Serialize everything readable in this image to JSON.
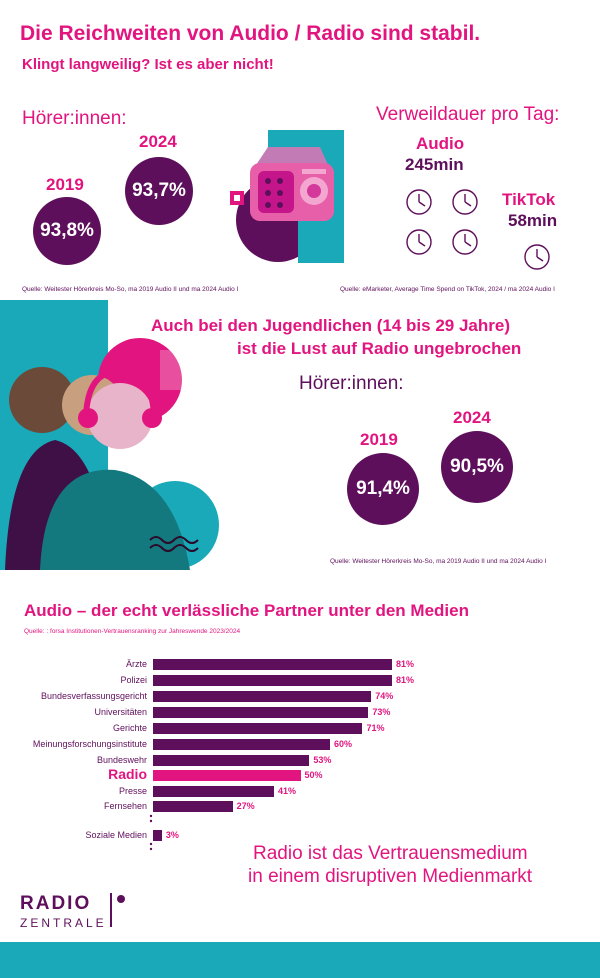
{
  "header": {
    "title": "Die Reichweiten von Audio / Radio sind stabil.",
    "subtitle": "Klingt langweilig? Ist es aber nicht!"
  },
  "section1": {
    "listeners_label": "Hörer:innen:",
    "year_2019": "2019",
    "value_2019": "93,8%",
    "year_2024": "2024",
    "value_2024": "93,7%",
    "source": "Quelle: Weitester Hörerkreis Mo-So, ma 2019 Audio II und ma 2024 Audio I",
    "dwell_label": "Verweildauer pro Tag:",
    "audio_label": "Audio",
    "audio_value": "245min",
    "tiktok_label": "TikTok",
    "tiktok_value": "58min",
    "dwell_source": "Quelle: eMarketer, Average Time Spend on TikTok, 2024 / ma 2024 Audio I"
  },
  "section2": {
    "heading_line1": "Auch bei den Jugendlichen (14 bis 29 Jahre)",
    "heading_line2": "ist die Lust auf Radio ungebrochen",
    "listeners_label": "Hörer:innen:",
    "year_2019": "2019",
    "value_2019": "91,4%",
    "year_2024": "2024",
    "value_2024": "90,5%",
    "source": "Quelle: Weitester Hörerkreis Mo-So, ma 2019 Audio II und ma 2024 Audio I"
  },
  "section3": {
    "heading": "Audio – der echt verlässliche Partner unter den Medien",
    "source": "Quelle: : forsa Institutionen-Vertrauensranking zur Jahreswende 2023/2024",
    "tagline_line1": "Radio ist das Vertrauensmedium",
    "tagline_line2": "in einem disruptiven Medienmarkt"
  },
  "brand": {
    "line1": "RADIO",
    "line2": "ZENTRALE"
  },
  "colors": {
    "pink": "#e2147f",
    "purple": "#5e0f5b",
    "teal": "#1aa9b8"
  },
  "chart_data": {
    "type": "bar",
    "orientation": "horizontal",
    "categories": [
      "Ärzte",
      "Polizei",
      "Bundesverfassungsgericht",
      "Universitäten",
      "Gerichte",
      "Meinungsforschungsinstitute",
      "Bundeswehr",
      "Radio",
      "Presse",
      "Fernsehen",
      "Soziale Medien"
    ],
    "values": [
      81,
      81,
      74,
      73,
      71,
      60,
      53,
      50,
      41,
      27,
      3
    ],
    "labels": [
      "81%",
      "81%",
      "74%",
      "73%",
      "71%",
      "60%",
      "53%",
      "50%",
      "41%",
      "27%",
      "3%"
    ],
    "highlight": "Radio",
    "unit": "%"
  }
}
